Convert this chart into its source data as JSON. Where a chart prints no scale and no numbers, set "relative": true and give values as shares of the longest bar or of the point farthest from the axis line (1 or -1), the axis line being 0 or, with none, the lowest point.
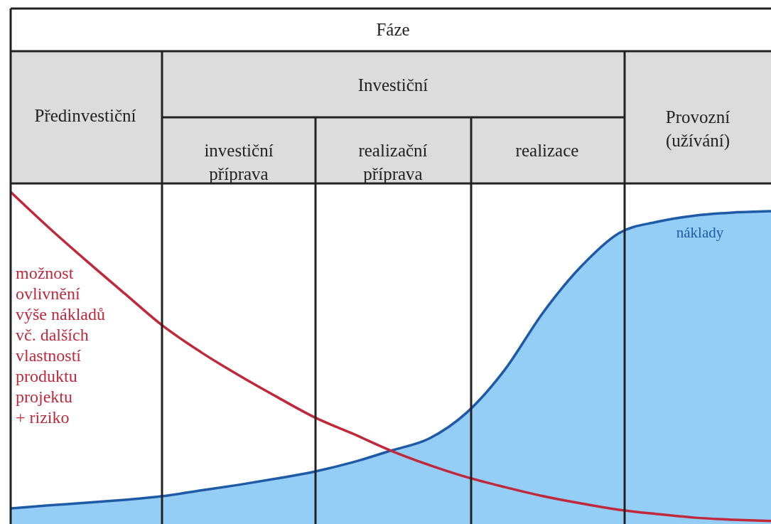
{
  "chart_data": {
    "type": "line",
    "relative": true,
    "grid": "x",
    "categories": [
      null,
      null,
      null,
      null,
      null,
      null,
      null,
      null,
      null,
      null,
      null,
      null,
      null,
      null,
      null,
      null,
      null,
      null,
      null,
      null,
      null
    ],
    "series": [
      {
        "name": "náklady",
        "type": "area",
        "color": "#94cdf5",
        "values": [
          0.047,
          0.056,
          0.064,
          0.073,
          0.084,
          0.101,
          0.118,
          0.137,
          0.158,
          0.186,
          0.221,
          0.257,
          0.336,
          0.465,
          0.636,
          0.775,
          0.876,
          0.91,
          0.929,
          0.938,
          0.942
        ]
      },
      {
        "name": "možnost\novlivnění\nvýše nákladů\nvč. dalších\nvlastností\nproduktu\nprojektu\n+ riziko",
        "color": "#c0283c",
        "values": [
          1.0,
          0.893,
          0.792,
          0.694,
          0.597,
          0.518,
          0.448,
          0.383,
          0.321,
          0.272,
          0.221,
          0.178,
          0.141,
          0.111,
          0.084,
          0.062,
          0.043,
          0.03,
          0.019,
          0.013,
          0.009
        ]
      }
    ],
    "annotations": [
      "Fáze",
      "Předinvestiční",
      "Investiční",
      "investiční\npříprava",
      "realizační\npříprava",
      "realizace",
      "Provozní\n(užívání)"
    ]
  }
}
